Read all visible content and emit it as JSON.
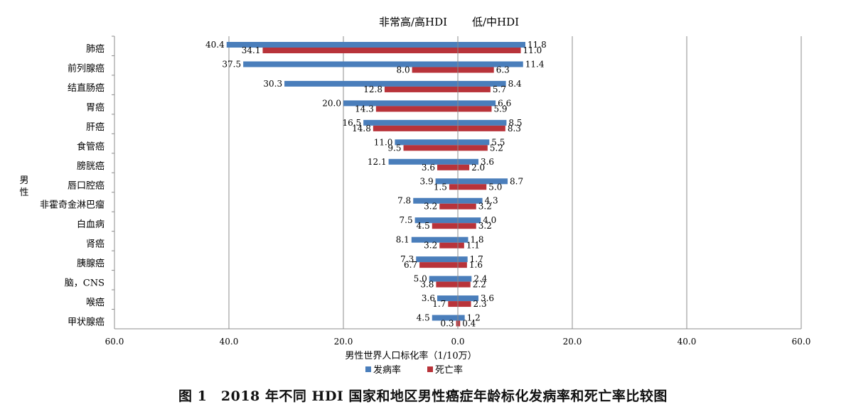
{
  "caption": "图 1　2018 年不同 HDI 国家和地区男性癌症年龄标化发病率和死亡率比较图",
  "chart_data": {
    "type": "bar",
    "orientation": "horizontal",
    "layout": "back-to-back",
    "panel_titles": [
      "非常高/高HDI",
      "低/中HDI"
    ],
    "group_label": "男性",
    "xlabel": "男性世界人口标化率（1/10万）",
    "xlim": [
      -60,
      60
    ],
    "xtick_labels": [
      "60.0",
      "40.0",
      "20.0",
      "0.0",
      "20.0",
      "40.0",
      "60.0"
    ],
    "grid": "vertical",
    "legend_position": "bottom-center",
    "categories": [
      "肺癌",
      "前列腺癌",
      "结直肠癌",
      "胃癌",
      "肝癌",
      "食管癌",
      "膀胱癌",
      "唇口腔癌",
      "非霍奇金淋巴瘤",
      "白血病",
      "肾癌",
      "胰腺癌",
      "脑，CNS",
      "喉癌",
      "甲状腺癌"
    ],
    "series": [
      {
        "name": "发病率",
        "color": "#4a7ebb",
        "left_values": [
          40.4,
          37.5,
          30.3,
          20.0,
          16.5,
          11.0,
          12.1,
          3.9,
          7.8,
          7.5,
          8.1,
          7.3,
          5.0,
          3.6,
          4.5
        ],
        "right_values": [
          11.8,
          11.4,
          8.4,
          6.6,
          8.5,
          5.5,
          3.6,
          8.7,
          4.3,
          4.0,
          1.8,
          1.7,
          2.4,
          3.6,
          1.2
        ]
      },
      {
        "name": "死亡率",
        "color": "#b8333a",
        "left_values": [
          34.1,
          8.0,
          12.8,
          14.3,
          14.8,
          9.5,
          3.6,
          1.5,
          3.2,
          4.5,
          3.2,
          6.7,
          3.8,
          1.7,
          0.3
        ],
        "right_values": [
          11.0,
          6.3,
          5.7,
          5.9,
          8.3,
          5.2,
          2.0,
          5.0,
          3.2,
          3.2,
          1.1,
          1.6,
          2.2,
          2.3,
          0.4
        ]
      }
    ]
  }
}
